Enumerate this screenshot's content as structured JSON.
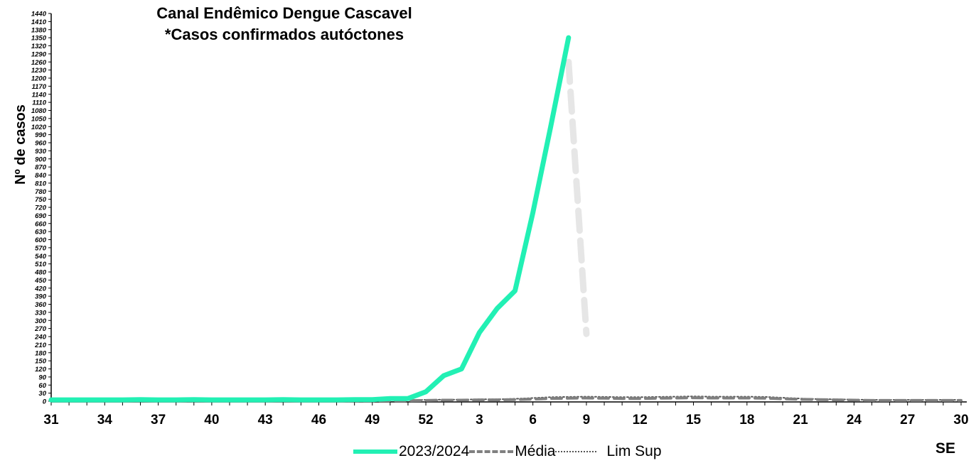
{
  "chart_data": {
    "type": "line",
    "title_lines": [
      "Canal Endêmico Dengue Cascavel",
      "*Casos confirmados autóctones"
    ],
    "xlabel": "SE",
    "ylabel": "Nº de casos",
    "ylim": [
      0,
      1440
    ],
    "y_tick_step": 30,
    "x_tick_labels": [
      "31",
      "34",
      "37",
      "40",
      "43",
      "46",
      "49",
      "52",
      "3",
      "6",
      "9",
      "12",
      "15",
      "18",
      "21",
      "24",
      "27",
      "30"
    ],
    "x_points": [
      "31",
      "32",
      "33",
      "34",
      "35",
      "36",
      "37",
      "38",
      "39",
      "40",
      "41",
      "42",
      "43",
      "44",
      "45",
      "46",
      "47",
      "48",
      "49",
      "50",
      "51",
      "52",
      "1",
      "2",
      "3",
      "4",
      "5",
      "6",
      "7",
      "8",
      "9",
      "10",
      "11",
      "12",
      "13",
      "14",
      "15",
      "16",
      "17",
      "18",
      "19",
      "20",
      "21",
      "22",
      "23",
      "24",
      "25",
      "26",
      "27",
      "28",
      "29",
      "30"
    ],
    "series": [
      {
        "name": "2023/2024",
        "color": "#22f0b4",
        "style": "solid",
        "values": [
          5,
          5,
          5,
          5,
          5,
          6,
          5,
          5,
          6,
          5,
          5,
          5,
          5,
          6,
          5,
          5,
          5,
          6,
          6,
          10,
          10,
          35,
          95,
          120,
          255,
          345,
          410,
          700,
          1020,
          1350
        ]
      },
      {
        "name": "Média",
        "color": "#808080",
        "style": "dashed",
        "values": [
          2,
          2,
          2,
          2,
          2,
          2,
          2,
          2,
          2,
          2,
          2,
          2,
          2,
          2,
          2,
          2,
          2,
          2,
          2,
          2,
          2,
          3,
          4,
          4,
          5,
          5,
          6,
          8,
          10,
          11,
          12,
          11,
          10,
          10,
          11,
          12,
          13,
          12,
          12,
          12,
          11,
          9,
          7,
          6,
          5,
          4,
          3,
          3,
          3,
          3,
          3,
          3
        ]
      },
      {
        "name": "Lim Sup",
        "color": "#555555",
        "style": "dotted",
        "values": [
          4,
          4,
          4,
          4,
          4,
          4,
          4,
          4,
          4,
          4,
          4,
          4,
          4,
          4,
          4,
          4,
          4,
          4,
          4,
          4,
          4,
          5,
          6,
          6,
          7,
          7,
          9,
          12,
          15,
          16,
          17,
          16,
          15,
          15,
          16,
          17,
          18,
          17,
          17,
          17,
          16,
          13,
          10,
          8,
          7,
          6,
          5,
          5,
          5,
          5,
          5,
          5
        ]
      }
    ],
    "annotation_line": {
      "color": "#e6e6e6",
      "style": "dashed",
      "points": [
        [
          "8",
          1260
        ],
        [
          "9",
          250
        ]
      ]
    },
    "legend_position": "bottom-center",
    "grid": false
  }
}
